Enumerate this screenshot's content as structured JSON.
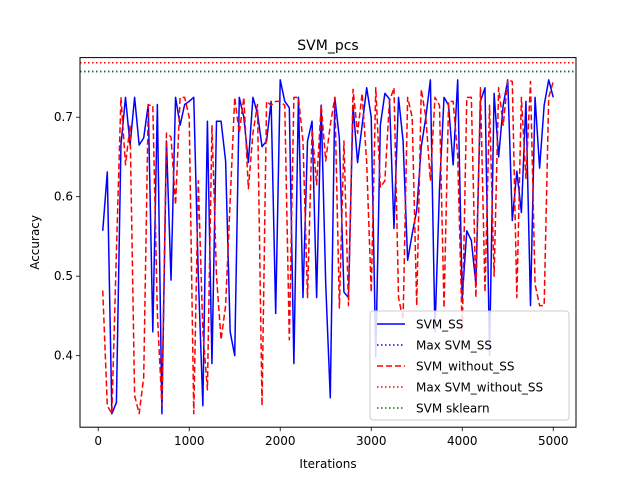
{
  "chart_data": {
    "type": "line",
    "title": "SVM_pcs",
    "xlabel": "Iterations",
    "ylabel": "Accuracy",
    "xlim": [
      -200,
      5250
    ],
    "ylim": [
      0.31,
      0.775
    ],
    "xticks": [
      0,
      1000,
      2000,
      3000,
      4000,
      5000
    ],
    "yticks": [
      0.4,
      0.5,
      0.6,
      0.7
    ],
    "xtick_labels": [
      "0",
      "1000",
      "2000",
      "3000",
      "4000",
      "5000"
    ],
    "ytick_labels": [
      "0.4",
      "0.5",
      "0.6",
      "0.7"
    ],
    "legend_position": "lower-right",
    "series": [
      {
        "name": "SVM_SS",
        "style": "solid",
        "color": "#0000ff",
        "x": [
          50,
          100,
          150,
          200,
          250,
          300,
          350,
          400,
          450,
          500,
          550,
          600,
          650,
          700,
          750,
          800,
          850,
          900,
          950,
          1000,
          1050,
          1100,
          1150,
          1200,
          1250,
          1300,
          1350,
          1400,
          1450,
          1500,
          1550,
          1600,
          1650,
          1700,
          1750,
          1800,
          1850,
          1900,
          1950,
          2000,
          2050,
          2100,
          2150,
          2200,
          2250,
          2300,
          2350,
          2400,
          2450,
          2500,
          2550,
          2600,
          2650,
          2700,
          2750,
          2800,
          2850,
          2900,
          2950,
          3000,
          3050,
          3100,
          3150,
          3200,
          3250,
          3300,
          3350,
          3400,
          3450,
          3500,
          3550,
          3600,
          3650,
          3700,
          3750,
          3800,
          3850,
          3900,
          3950,
          4000,
          4050,
          4100,
          4150,
          4200,
          4250,
          4300,
          4350,
          4400,
          4450,
          4500,
          4550,
          4600,
          4650,
          4700,
          4750,
          4800,
          4850,
          4900,
          4950,
          5000
        ],
        "y": [
          0.557,
          0.631,
          0.327,
          0.341,
          0.665,
          0.725,
          0.665,
          0.725,
          0.665,
          0.674,
          0.716,
          0.43,
          0.716,
          0.327,
          0.67,
          0.495,
          0.725,
          0.69,
          0.716,
          0.72,
          0.725,
          0.5,
          0.337,
          0.695,
          0.39,
          0.695,
          0.695,
          0.645,
          0.43,
          0.4,
          0.725,
          0.7,
          0.643,
          0.725,
          0.705,
          0.663,
          0.67,
          0.72,
          0.453,
          0.747,
          0.72,
          0.712,
          0.39,
          0.725,
          0.473,
          0.67,
          0.695,
          0.473,
          0.715,
          0.49,
          0.347,
          0.725,
          0.673,
          0.48,
          0.473,
          0.715,
          0.643,
          0.69,
          0.737,
          0.7,
          0.398,
          0.69,
          0.73,
          0.723,
          0.56,
          0.725,
          0.67,
          0.52,
          0.553,
          0.583,
          0.663,
          0.7,
          0.747,
          0.43,
          0.61,
          0.725,
          0.715,
          0.64,
          0.747,
          0.473,
          0.557,
          0.545,
          0.49,
          0.72,
          0.737,
          0.4,
          0.73,
          0.65,
          0.715,
          0.747,
          0.57,
          0.632,
          0.58,
          0.72,
          0.463,
          0.725,
          0.636,
          0.715,
          0.747,
          0.725
        ]
      },
      {
        "name": "Max SVM_SS",
        "style": "dotted",
        "color": "#0000ff",
        "constant": 0.7575
      },
      {
        "name": "SVM_without_SS",
        "style": "dashed",
        "color": "#ff0000",
        "x": [
          50,
          100,
          150,
          200,
          250,
          300,
          350,
          400,
          450,
          500,
          550,
          600,
          650,
          700,
          750,
          800,
          850,
          900,
          950,
          1000,
          1050,
          1100,
          1150,
          1200,
          1250,
          1300,
          1350,
          1400,
          1450,
          1500,
          1550,
          1600,
          1650,
          1700,
          1750,
          1800,
          1850,
          1900,
          1950,
          2000,
          2050,
          2100,
          2150,
          2200,
          2250,
          2300,
          2350,
          2400,
          2450,
          2500,
          2550,
          2600,
          2650,
          2700,
          2750,
          2800,
          2850,
          2900,
          2950,
          3000,
          3050,
          3100,
          3150,
          3200,
          3250,
          3300,
          3350,
          3400,
          3450,
          3500,
          3550,
          3600,
          3650,
          3700,
          3750,
          3800,
          3850,
          3900,
          3950,
          4000,
          4050,
          4100,
          4150,
          4200,
          4250,
          4300,
          4350,
          4400,
          4450,
          4500,
          4550,
          4600,
          4650,
          4700,
          4750,
          4800,
          4850,
          4900,
          4950,
          5000
        ],
        "y": [
          0.482,
          0.337,
          0.327,
          0.53,
          0.725,
          0.64,
          0.69,
          0.35,
          0.327,
          0.373,
          0.715,
          0.715,
          0.453,
          0.337,
          0.68,
          0.675,
          0.59,
          0.725,
          0.725,
          0.7,
          0.327,
          0.62,
          0.43,
          0.357,
          0.69,
          0.5,
          0.42,
          0.463,
          0.595,
          0.725,
          0.68,
          0.725,
          0.61,
          0.68,
          0.716,
          0.337,
          0.72,
          0.715,
          0.72,
          0.72,
          0.715,
          0.42,
          0.725,
          0.725,
          0.67,
          0.473,
          0.685,
          0.615,
          0.715,
          0.645,
          0.69,
          0.725,
          0.46,
          0.67,
          0.463,
          0.735,
          0.68,
          0.73,
          0.643,
          0.48,
          0.737,
          0.612,
          0.62,
          0.72,
          0.737,
          0.473,
          0.445,
          0.725,
          0.7,
          0.463,
          0.735,
          0.7,
          0.62,
          0.725,
          0.715,
          0.46,
          0.72,
          0.72,
          0.652,
          0.43,
          0.725,
          0.725,
          0.473,
          0.737,
          0.48,
          0.715,
          0.5,
          0.737,
          0.69,
          0.747,
          0.745,
          0.473,
          0.725,
          0.623,
          0.745,
          0.49,
          0.463,
          0.463,
          0.725,
          0.745
        ]
      },
      {
        "name": "Max SVM_without_SS",
        "style": "dotted",
        "color": "#ff0000",
        "constant": 0.7685
      },
      {
        "name": "SVM sklearn",
        "style": "dotted",
        "color": "#008000",
        "constant": 0.7575
      }
    ]
  }
}
